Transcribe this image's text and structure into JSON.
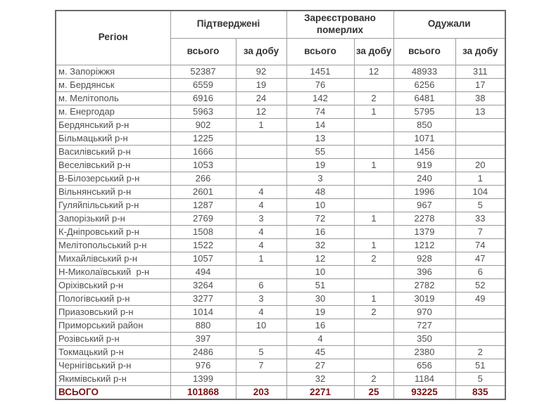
{
  "colors": {
    "background": "#FFFFFF",
    "border": "#9B9B9B",
    "header_text": "#333333",
    "data_text": "#4F4F4F",
    "total_text": "#7D1315"
  },
  "table": {
    "header": {
      "region": "Регіон",
      "groups": [
        {
          "label": "Підтверджені"
        },
        {
          "label": "Зареєстровано померлих"
        },
        {
          "label": "Одужали"
        }
      ],
      "sub_labels": [
        "всього",
        "за добу",
        "всього",
        "за добу",
        "всього",
        "за добу"
      ]
    },
    "rows": [
      [
        "м. Запоріжжя",
        "52387",
        "92",
        "1451",
        "12",
        "48933",
        "311"
      ],
      [
        "м. Бердянськ",
        "6559",
        "19",
        "76",
        "",
        "6256",
        "17"
      ],
      [
        "м. Мелітополь",
        "6916",
        "24",
        "142",
        "2",
        "6481",
        "38"
      ],
      [
        "м. Енергодар",
        "5963",
        "12",
        "74",
        "1",
        "5795",
        "13"
      ],
      [
        "Бердянський р-н",
        "902",
        "1",
        "14",
        "",
        "850",
        ""
      ],
      [
        "Більмацький р-н",
        "1225",
        "",
        "13",
        "",
        "1071",
        ""
      ],
      [
        "Василівський р-н",
        "1666",
        "",
        "55",
        "",
        "1456",
        ""
      ],
      [
        "Веселівський р-н",
        "1053",
        "",
        "19",
        "1",
        "919",
        "20"
      ],
      [
        "В-Білозерський р-н",
        "266",
        "",
        "3",
        "",
        "240",
        "1"
      ],
      [
        "Вільнянський р-н",
        "2601",
        "4",
        "48",
        "",
        "1996",
        "104"
      ],
      [
        "Гуляйпільський р-н",
        "1287",
        "4",
        "10",
        "",
        "967",
        "5"
      ],
      [
        "Запорізький р-н",
        "2769",
        "3",
        "72",
        "1",
        "2278",
        "33"
      ],
      [
        "К-Дніпровський р-н",
        "1508",
        "4",
        "16",
        "",
        "1379",
        "7"
      ],
      [
        "Мелітопольський р-н",
        "1522",
        "4",
        "32",
        "1",
        "1212",
        "74"
      ],
      [
        "Михайлівський р-н",
        "1057",
        "1",
        "12",
        "2",
        "928",
        "47"
      ],
      [
        "Н-Миколаївський  р-н",
        "494",
        "",
        "10",
        "",
        "396",
        "6"
      ],
      [
        "Оріхівський р-н",
        "3264",
        "6",
        "51",
        "",
        "2782",
        "52"
      ],
      [
        "Пологівський р-н",
        "3277",
        "3",
        "30",
        "1",
        "3019",
        "49"
      ],
      [
        "Приазовський р-н",
        "1014",
        "4",
        "19",
        "2",
        "970",
        ""
      ],
      [
        "Приморський район",
        "880",
        "10",
        "16",
        "",
        "727",
        ""
      ],
      [
        "Розівський р-н",
        "397",
        "",
        "4",
        "",
        "350",
        ""
      ],
      [
        "Токмацький р-н",
        "2486",
        "5",
        "45",
        "",
        "2380",
        "2"
      ],
      [
        "Чернігівський р-н",
        "976",
        "7",
        "27",
        "",
        "656",
        "51"
      ],
      [
        "Якимівський р-н",
        "1399",
        "",
        "32",
        "2",
        "1184",
        "5"
      ]
    ],
    "total_row": [
      "ВСЬОГО",
      "101868",
      "203",
      "2271",
      "25",
      "93225",
      "835"
    ]
  }
}
